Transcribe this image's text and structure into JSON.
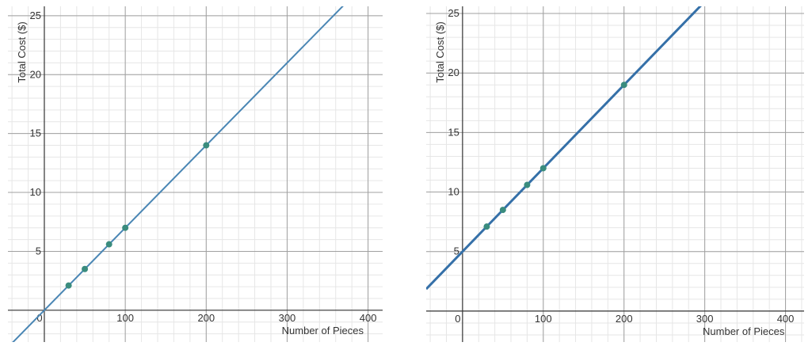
{
  "chart_data": [
    {
      "type": "line",
      "xlabel": "Number of Pieces",
      "ylabel": "Total Cost ($)",
      "xlim": [
        -45,
        418
      ],
      "ylim": [
        -2.7,
        25.8
      ],
      "xticks": [
        0,
        100,
        200,
        300,
        400
      ],
      "yticks": [
        5,
        10,
        15,
        20,
        25
      ],
      "grid": true,
      "minor_divisions": 5,
      "series": [
        {
          "kind": "line",
          "color": "#4a86b4",
          "x": [
            -40,
            380
          ],
          "values": [
            -2.8,
            26.6
          ]
        },
        {
          "kind": "points",
          "color": "#3a8c7e",
          "x": [
            30,
            50,
            80,
            100,
            200
          ],
          "values": [
            2.1,
            3.5,
            5.6,
            7,
            14
          ]
        }
      ]
    },
    {
      "type": "line",
      "xlabel": "Number of Pieces",
      "ylabel": "Total Cost ($)",
      "xlim": [
        -45,
        423
      ],
      "ylim": [
        -2.6,
        25.6
      ],
      "xticks": [
        0,
        100,
        200,
        300,
        400
      ],
      "yticks": [
        5,
        10,
        15,
        20,
        25
      ],
      "grid": true,
      "minor_divisions": 5,
      "series": [
        {
          "kind": "line",
          "color": "#3570a8",
          "x": [
            -45,
            310
          ],
          "values": [
            1.85,
            26.7
          ]
        },
        {
          "kind": "points",
          "color": "#3a8c7e",
          "x": [
            30,
            50,
            80,
            100,
            200
          ],
          "values": [
            7.1,
            8.5,
            10.6,
            12,
            19
          ]
        }
      ]
    }
  ]
}
